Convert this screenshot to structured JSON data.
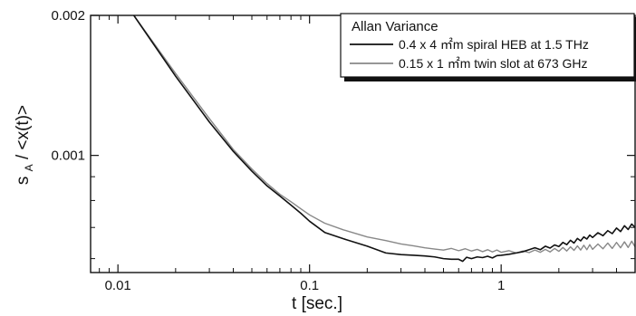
{
  "chart_data": {
    "type": "line",
    "title": "",
    "xlabel": "t  [sec.]",
    "ylabel": "s_A / <x(t)>",
    "ylabel_main": "s",
    "ylabel_sub": "A",
    "ylabel_rest": " / <x(t)>",
    "x_scale": "log",
    "y_scale": "log",
    "xlim": [
      0.0072,
      5.0
    ],
    "ylim": [
      0.00056,
      0.002
    ],
    "x_ticks": [
      0.01,
      0.1,
      1
    ],
    "x_tick_labels": [
      "0.01",
      "0.1",
      "1"
    ],
    "y_ticks": [
      0.001,
      0.002
    ],
    "y_tick_labels": [
      "0.001",
      "0.002"
    ],
    "grid": false,
    "legend_position": "top-right",
    "legend_title": "Allan Variance",
    "series": [
      {
        "name": "0.4 x 4 ㎡m spiral HEB at 1.5 THz",
        "color": "#111111",
        "x": [
          0.012,
          0.02,
          0.03,
          0.04,
          0.05,
          0.06,
          0.07,
          0.08,
          0.09,
          0.1,
          0.12,
          0.15,
          0.2,
          0.25,
          0.3,
          0.35,
          0.4,
          0.45,
          0.5,
          0.55,
          0.6,
          0.63,
          0.66,
          0.7,
          0.75,
          0.8,
          0.85,
          0.9,
          0.95,
          1.0,
          1.1,
          1.2,
          1.3,
          1.4,
          1.5,
          1.6,
          1.7,
          1.8,
          1.9,
          2.0,
          2.1,
          2.2,
          2.3,
          2.4,
          2.5,
          2.6,
          2.7,
          2.8,
          2.9,
          3.0,
          3.2,
          3.4,
          3.6,
          3.8,
          4.0,
          4.2,
          4.4,
          4.6,
          4.8,
          5.0
        ],
        "values": [
          0.00201,
          0.00148,
          0.00118,
          0.00102,
          0.000925,
          0.00086,
          0.000818,
          0.000782,
          0.000751,
          0.000722,
          0.000683,
          0.000662,
          0.000638,
          0.000617,
          0.000612,
          0.00061,
          0.000608,
          0.000605,
          0.0006,
          0.000598,
          0.000598,
          0.000592,
          0.000604,
          0.0006,
          0.000605,
          0.000603,
          0.000607,
          0.000602,
          0.000609,
          0.00061,
          0.000613,
          0.000617,
          0.000621,
          0.000627,
          0.000633,
          0.000627,
          0.000638,
          0.000632,
          0.000642,
          0.000637,
          0.00065,
          0.000643,
          0.000657,
          0.000648,
          0.000663,
          0.000655,
          0.000668,
          0.000661,
          0.000674,
          0.000666,
          0.000682,
          0.000672,
          0.000689,
          0.000679,
          0.000698,
          0.000686,
          0.000706,
          0.000693,
          0.000712,
          0.0007
        ]
      },
      {
        "name": "0.15 x 1 ㎡m twin slot at 673 GHz",
        "color": "#888888",
        "x": [
          0.012,
          0.02,
          0.03,
          0.04,
          0.05,
          0.06,
          0.07,
          0.08,
          0.09,
          0.1,
          0.12,
          0.15,
          0.2,
          0.25,
          0.3,
          0.35,
          0.4,
          0.45,
          0.5,
          0.55,
          0.6,
          0.65,
          0.7,
          0.75,
          0.8,
          0.85,
          0.9,
          0.95,
          1.0,
          1.1,
          1.2,
          1.3,
          1.4,
          1.5,
          1.6,
          1.7,
          1.8,
          1.9,
          2.0,
          2.1,
          2.2,
          2.3,
          2.4,
          2.5,
          2.6,
          2.7,
          2.8,
          2.9,
          3.0,
          3.2,
          3.4,
          3.6,
          3.8,
          4.0,
          4.2,
          4.4,
          4.6,
          4.8,
          5.0
        ],
        "values": [
          0.00201,
          0.0015,
          0.0012,
          0.00103,
          0.000935,
          0.00087,
          0.000825,
          0.000795,
          0.000768,
          0.000745,
          0.000715,
          0.000692,
          0.000668,
          0.000656,
          0.000645,
          0.000639,
          0.000633,
          0.000629,
          0.000626,
          0.000631,
          0.000624,
          0.00063,
          0.000623,
          0.000628,
          0.000621,
          0.000627,
          0.00062,
          0.000626,
          0.000619,
          0.000624,
          0.000617,
          0.000623,
          0.000618,
          0.000626,
          0.000619,
          0.000628,
          0.00062,
          0.000631,
          0.000622,
          0.000634,
          0.000623,
          0.000636,
          0.000625,
          0.000639,
          0.000626,
          0.000641,
          0.000627,
          0.000643,
          0.000628,
          0.000645,
          0.00063,
          0.000648,
          0.000631,
          0.00065,
          0.000633,
          0.000652,
          0.000634,
          0.000654,
          0.000636
        ]
      }
    ]
  }
}
